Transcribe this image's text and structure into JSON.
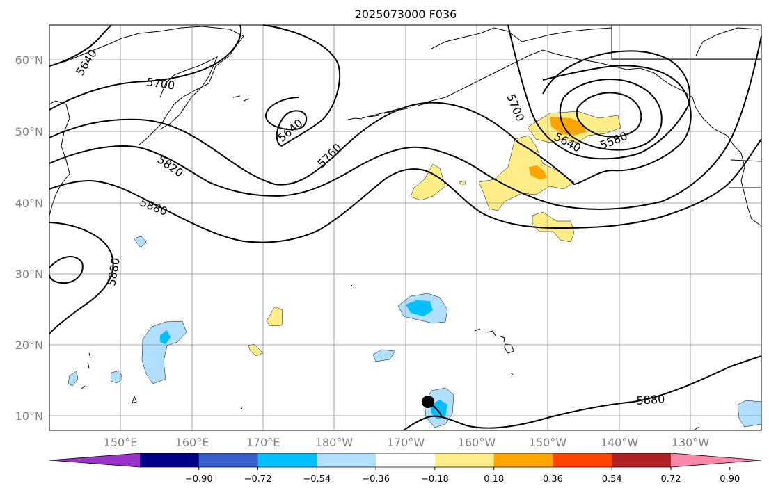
{
  "title": "2025073000 F036",
  "lat_labels": [
    "60°N",
    "50°N",
    "40°N",
    "30°N",
    "20°N",
    "10°N"
  ],
  "lon_labels": [
    "150°E",
    "160°E",
    "170°E",
    "180°W",
    "170°W",
    "160°W",
    "150°W",
    "140°W",
    "130°W"
  ],
  "contour_labels": [
    "5640",
    "5700",
    "5640",
    "5760",
    "5820",
    "5880",
    "5880",
    "5700",
    "5640",
    "5580",
    "5880"
  ],
  "colorbar": {
    "ticks": [
      "−0.90",
      "−0.72",
      "−0.54",
      "−0.36",
      "−0.18",
      "0.18",
      "0.36",
      "0.54",
      "0.72",
      "0.90"
    ],
    "colors": [
      "#9933cc",
      "#00008b",
      "#3a5fcd",
      "#00bfff",
      "#b0dfff",
      "#ffffff",
      "#ffee88",
      "#ffa500",
      "#ff4500",
      "#b22222",
      "#ff88aa"
    ]
  },
  "colors": {
    "positive_light": "#ffee88",
    "positive_strong": "#ffa500",
    "negative_light": "#b0dfff",
    "negative_strong": "#00bfff"
  },
  "marker": "storm-center-dot"
}
